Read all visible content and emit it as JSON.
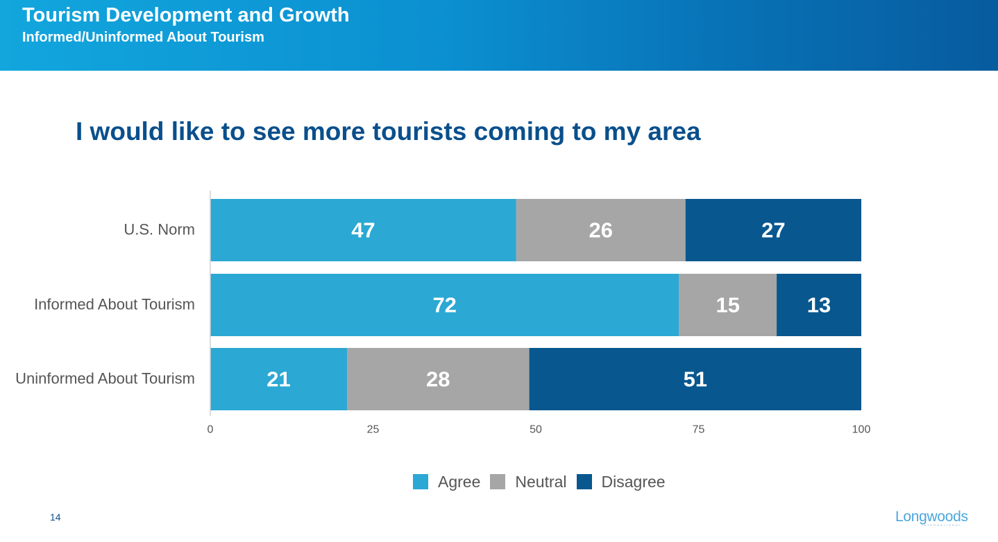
{
  "header": {
    "title": "Tourism Development and Growth",
    "subtitle": "Informed/Uninformed About Tourism"
  },
  "question": "I would like to see more tourists coming to my area",
  "chart_data": {
    "type": "bar",
    "orientation": "horizontal",
    "stacked": true,
    "categories": [
      "U.S. Norm",
      "Informed About Tourism",
      "Uninformed About Tourism"
    ],
    "series": [
      {
        "name": "Agree",
        "values": [
          47,
          72,
          21
        ],
        "color": "#2ba8d3"
      },
      {
        "name": "Neutral",
        "values": [
          26,
          15,
          28
        ],
        "color": "#a6a6a6"
      },
      {
        "name": "Disagree",
        "values": [
          27,
          13,
          51
        ],
        "color": "#08578f"
      }
    ],
    "xlim": [
      0,
      100
    ],
    "xticks": [
      0,
      25,
      50,
      75,
      100
    ],
    "grid": false,
    "legend_position": "bottom",
    "data_label_color": "#ffffff"
  },
  "footer": {
    "page_number": "14",
    "logo_text": "Longwoods",
    "logo_subtext": "INTERNATIONAL"
  }
}
